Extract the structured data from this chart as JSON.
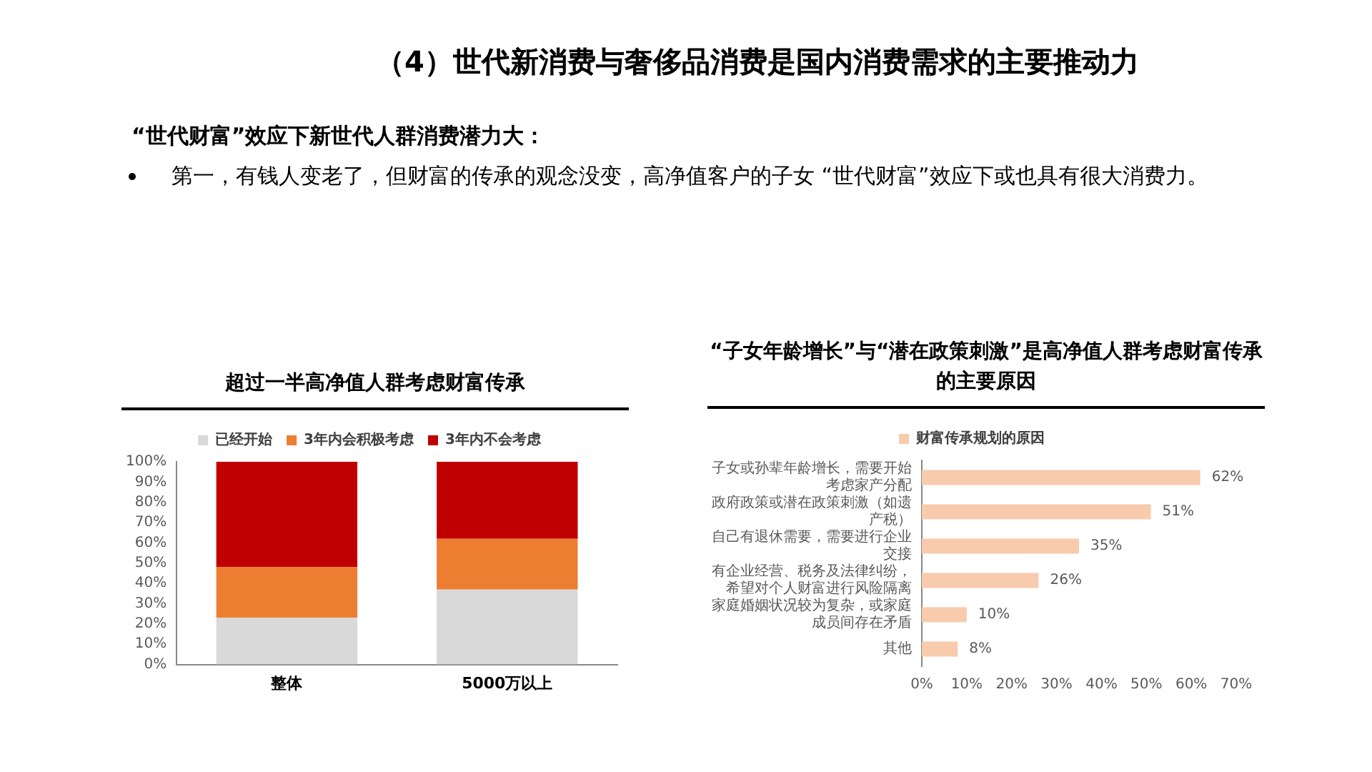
{
  "chart_data": [
    {
      "type": "other",
      "title": "（4）世代新消费与奢侈品消费是国内消费需求的主要推动力",
      "subtitle": "“世代财富”效应下新世代人群消费潜力大：",
      "annotations": [
        "第一，有钱人变老了，但财富的传承的观念没变，高净值客户的子女 “世代财富”效应下或也具有很大消费力。"
      ]
    },
    {
      "type": "bar",
      "title": "超过一半高净值人群考虑财富传承",
      "categories": [
        "整体",
        "5000万以上"
      ],
      "stacked": true,
      "legend": "top",
      "grid": false,
      "ylim": [
        0,
        100
      ],
      "yticks": [
        {
          "value": 0,
          "label": "0%"
        },
        {
          "value": 10,
          "label": "10%"
        },
        {
          "value": 20,
          "label": "20%"
        },
        {
          "value": 30,
          "label": "30%"
        },
        {
          "value": 40,
          "label": "40%"
        },
        {
          "value": 50,
          "label": "50%"
        },
        {
          "value": 60,
          "label": "60%"
        },
        {
          "value": 70,
          "label": "70%"
        },
        {
          "value": 80,
          "label": "80%"
        },
        {
          "value": 90,
          "label": "90%"
        },
        {
          "value": 100,
          "label": "100%"
        }
      ],
      "series": [
        {
          "name": "已经开始",
          "color": "#d9d9d9",
          "values": [
            23,
            37
          ]
        },
        {
          "name": "3年内会积极考虑",
          "color": "#ed7d31",
          "values": [
            25,
            25
          ]
        },
        {
          "name": "3年内不会考虑",
          "color": "#c00000",
          "values": [
            52,
            38
          ]
        }
      ]
    },
    {
      "type": "bar",
      "title": "“子女年龄增长”与“潜在政策刺激”是高净值人群考虑财富传承的主要原因",
      "orientation": "horizontal",
      "legend": "top",
      "grid": false,
      "categories": [
        "子女或孙辈年龄增长，需要开始考虑家产分配",
        "政府政策或潜在政策刺激（如遗产税）",
        "自己有退休需要，需要进行企业交接",
        "有企业经营、税务及法律纠纷，希望对个人财富进行风险隔离",
        "家庭婚姻状况较为复杂，或家庭成员间存在矛盾",
        "其他"
      ],
      "xlim": [
        0,
        70
      ],
      "xticks": [
        {
          "value": 0,
          "label": "0%"
        },
        {
          "value": 10,
          "label": "10%"
        },
        {
          "value": 20,
          "label": "20%"
        },
        {
          "value": 30,
          "label": "30%"
        },
        {
          "value": 40,
          "label": "40%"
        },
        {
          "value": 50,
          "label": "50%"
        },
        {
          "value": 60,
          "label": "60%"
        },
        {
          "value": 70,
          "label": "70%"
        }
      ],
      "series": [
        {
          "name": "财富传承规划的原因",
          "color": "#f8cbad",
          "values": [
            62,
            51,
            35,
            26,
            10,
            8
          ],
          "value_labels": [
            "62%",
            "51%",
            "35%",
            "26%",
            "10%",
            "8%"
          ]
        }
      ]
    }
  ]
}
